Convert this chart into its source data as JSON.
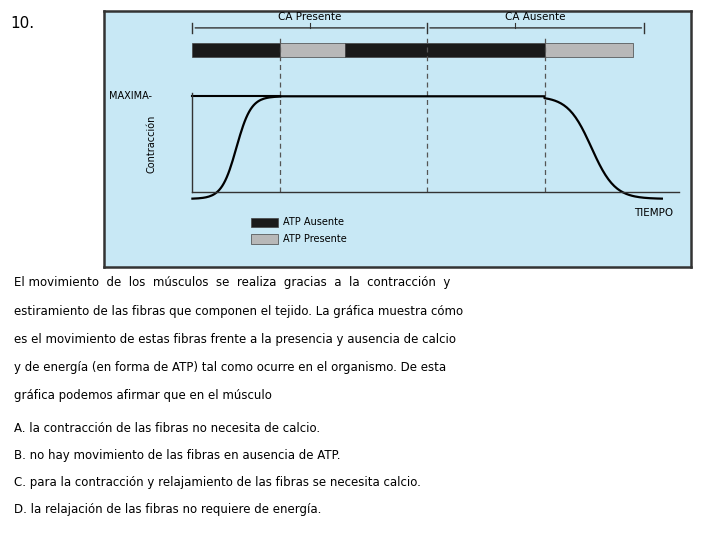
{
  "bg_color": "#ffffff",
  "chart_bg": "#c8e8f5",
  "title_number": "10.",
  "question_lines": [
    "El movimiento  de  los  músculos  se  realiza  gracias  a  la  contracción  y",
    "estiramiento de las fibras que componen el tejido. La gráfica muestra cómo",
    "es el movimiento de estas fibras frente a la presencia y ausencia de calcio",
    "y de energía (en forma de ATP) tal como ocurre en el organismo. De esta",
    "gráfica podemos afirmar que en el músculo"
  ],
  "options": [
    "A. la contracción de las fibras no necesita de calcio.",
    "B. no hay movimiento de las fibras en ausencia de ATP.",
    "C. para la contracción y relajamiento de las fibras se necesita calcio.",
    "D. la relajación de las fibras no requiere de energía."
  ],
  "ca_presente_label": "CA Presente",
  "ca_ausente_label": "CA Ausente",
  "maxima_label": "MAXIMA-",
  "contraccion_label": "Contracción",
  "tiempo_label": "TIEMPO",
  "atp_ausente_label": "ATP Ausente",
  "atp_presente_label": "ATP Presente",
  "bar_black": "#1a1a1a",
  "bar_gray": "#b8b8b8",
  "line_color": "#000000",
  "dashed_color": "#555555"
}
